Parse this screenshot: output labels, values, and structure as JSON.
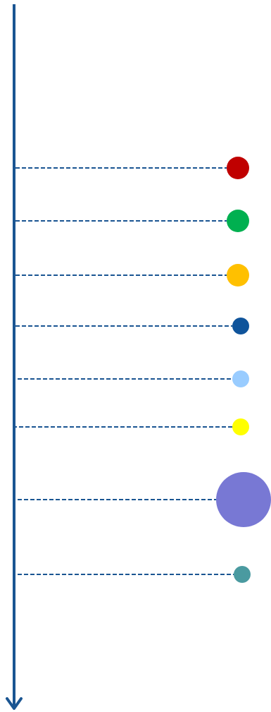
{
  "axis": {
    "color": "#1a5592",
    "direction": "down"
  },
  "connector": {
    "color": "#1a5592",
    "style": "dashed"
  },
  "markers": [
    {
      "color": "#c00000",
      "size": "medium"
    },
    {
      "color": "#00b050",
      "size": "medium"
    },
    {
      "color": "#ffc000",
      "size": "medium"
    },
    {
      "color": "#0f549b",
      "size": "small"
    },
    {
      "color": "#99ccff",
      "size": "small"
    },
    {
      "color": "#ffff00",
      "size": "small"
    },
    {
      "color": "#7878d4",
      "size": "large"
    },
    {
      "color": "#4a9aa0",
      "size": "small"
    }
  ]
}
